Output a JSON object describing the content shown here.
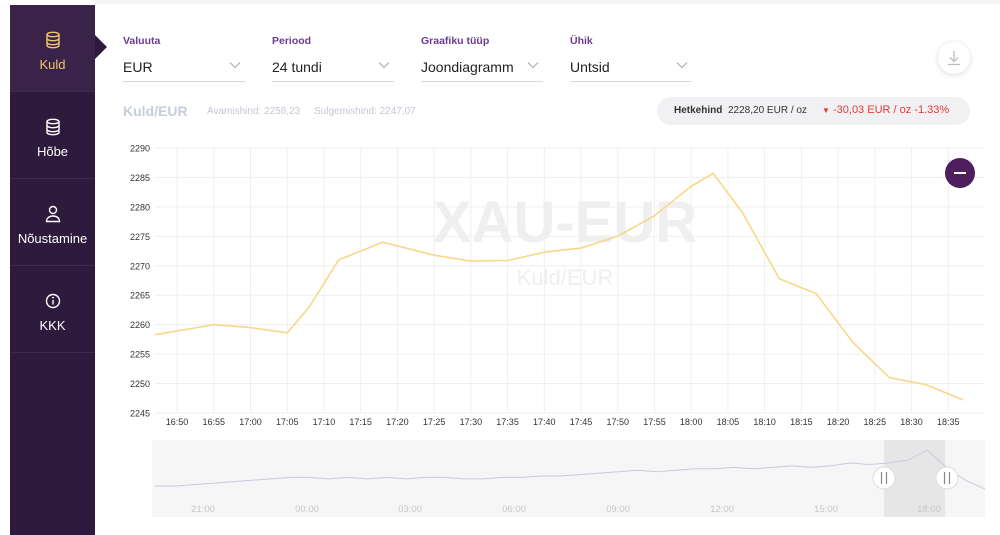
{
  "sidebar": {
    "items": [
      {
        "label": "Kuld",
        "icon": "coins-icon",
        "active": true
      },
      {
        "label": "Hõbe",
        "icon": "coins-icon",
        "active": false
      },
      {
        "label": "Nõustamine",
        "icon": "user-icon",
        "active": false
      },
      {
        "label": "KKK",
        "icon": "info-icon",
        "active": false
      }
    ]
  },
  "controls": {
    "currency": {
      "label": "Valuuta",
      "value": "EUR"
    },
    "period": {
      "label": "Periood",
      "value": "24 tundi"
    },
    "chart_type": {
      "label": "Graafiku tüüp",
      "value": "Joondiagramm"
    },
    "unit": {
      "label": "Ühik",
      "value": "Untsid"
    }
  },
  "chart_header": {
    "title": "Kuld/EUR",
    "open": "Avamishind: 2258,23",
    "close": "Sulgemishind: 2247,07",
    "current_label": "Hetkehind",
    "current_value": "2228,20 EUR / oz",
    "change": "-30,03 EUR / oz -1.33%"
  },
  "watermark": {
    "main": "XAU-EUR",
    "sub": "Kuld/EUR"
  },
  "colors": {
    "sidebar": "#2e1a3d",
    "accent_gold": "#f0c66a",
    "line": "#f7d88a",
    "negative": "#e53935",
    "purple": "#6d3a8e",
    "navigator_line": "#c5cce0"
  },
  "chart_data": {
    "type": "line",
    "title": "",
    "xlabel": "",
    "ylabel": "",
    "ylim": [
      2245,
      2290
    ],
    "yticks": [
      2290,
      2285,
      2280,
      2275,
      2270,
      2265,
      2260,
      2255,
      2250,
      2245
    ],
    "x": [
      "16:47",
      "16:55",
      "17:00",
      "17:05",
      "17:08",
      "17:12",
      "17:18",
      "17:25",
      "17:30",
      "17:35",
      "17:40",
      "17:45",
      "17:50",
      "17:55",
      "18:00",
      "18:03",
      "18:07",
      "18:12",
      "18:17",
      "18:22",
      "18:27",
      "18:32",
      "18:37"
    ],
    "values": [
      2258.3,
      2260.0,
      2259.5,
      2258.6,
      2263.0,
      2271.0,
      2274.0,
      2271.8,
      2270.8,
      2270.9,
      2272.3,
      2273.0,
      2275.0,
      2278.5,
      2283.5,
      2285.7,
      2279.0,
      2267.8,
      2265.3,
      2257.0,
      2251.0,
      2249.8,
      2247.2
    ],
    "xticks": [
      "16:50",
      "16:55",
      "17:00",
      "17:05",
      "17:10",
      "17:15",
      "17:20",
      "17:25",
      "17:30",
      "17:35",
      "17:40",
      "17:45",
      "17:50",
      "17:55",
      "18:00",
      "18:05",
      "18:10",
      "18:15",
      "18:20",
      "18:25",
      "18:30",
      "18:35"
    ],
    "grid": true,
    "navigator": {
      "labels": [
        "21:00",
        "00:00",
        "03:00",
        "06:00",
        "09:00",
        "12:00",
        "15:00",
        "18:00"
      ],
      "values": [
        2258,
        2258,
        2259,
        2260,
        2261,
        2262,
        2263,
        2264,
        2264,
        2263,
        2264,
        2263,
        2264,
        2263,
        2264,
        2264,
        2263,
        2263,
        2264,
        2264,
        2265,
        2265,
        2266,
        2267,
        2268,
        2269,
        2268,
        2269,
        2270,
        2270,
        2271,
        2270,
        2271,
        2272,
        2271,
        2272,
        2274,
        2273,
        2274,
        2276,
        2283,
        2271,
        2262,
        2256
      ]
    }
  }
}
